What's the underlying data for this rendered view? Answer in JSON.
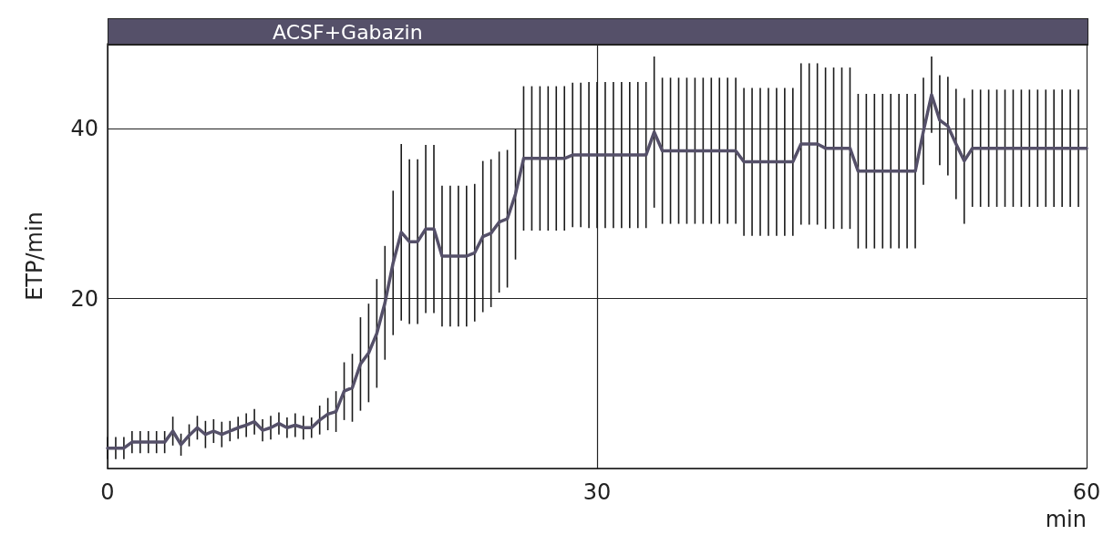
{
  "chart_data": {
    "type": "line",
    "ylabel": "ETP/min",
    "xlabel": "min",
    "xlim": [
      0,
      60
    ],
    "xticks": [
      0,
      30,
      60
    ],
    "ylim": [
      0,
      50
    ],
    "yticks": [
      20,
      40
    ],
    "grid": true,
    "marker": "none",
    "line_style": "solid",
    "annotations": [
      "ACSF+Gabazin"
    ],
    "series": [
      {
        "color": "#555069",
        "x": [
          0,
          0.5,
          1,
          1.5,
          2,
          2.5,
          3,
          3.5,
          4,
          4.5,
          5,
          5.5,
          6,
          6.5,
          7,
          7.5,
          8,
          8.5,
          9,
          9.5,
          10,
          10.5,
          11,
          11.5,
          12,
          12.5,
          13,
          13.5,
          14,
          14.5,
          15,
          15.5,
          16,
          16.5,
          17,
          17.5,
          18,
          18.5,
          19,
          19.5,
          20,
          20.5,
          21,
          21.5,
          22,
          22.5,
          23,
          23.5,
          24,
          24.5,
          25,
          25.5,
          26,
          26.5,
          27,
          27.5,
          28,
          28.5,
          29,
          29.5,
          30,
          30.5,
          31,
          31.5,
          32,
          32.5,
          33,
          33.5,
          34,
          34.5,
          35,
          35.5,
          36,
          36.5,
          37,
          37.5,
          38,
          38.5,
          39,
          39.5,
          40,
          40.5,
          41,
          41.5,
          42,
          42.5,
          43,
          43.5,
          44,
          44.5,
          45,
          45.5,
          46,
          46.5,
          47,
          47.5,
          48,
          48.5,
          49,
          49.5,
          50,
          50.5,
          51,
          51.5,
          52,
          52.5,
          53,
          53.5,
          54,
          54.5,
          55,
          55.5,
          56,
          56.5,
          57,
          57.5,
          58,
          58.5,
          59,
          59.5,
          60
        ],
        "values": [
          2.4,
          2.4,
          2.4,
          3.1,
          3.1,
          3.1,
          3.1,
          3.1,
          4.4,
          2.8,
          3.9,
          4.8,
          4.0,
          4.4,
          4.0,
          4.4,
          4.8,
          5.1,
          5.5,
          4.5,
          4.8,
          5.3,
          4.8,
          5.1,
          4.8,
          4.8,
          5.7,
          6.4,
          6.7,
          9.1,
          9.5,
          12.3,
          13.6,
          15.9,
          19.5,
          24.2,
          27.8,
          26.7,
          26.7,
          28.2,
          28.2,
          25.0,
          25.0,
          25.0,
          25.0,
          25.4,
          27.3,
          27.7,
          29.0,
          29.4,
          32.3,
          36.5,
          36.5,
          36.5,
          36.5,
          36.5,
          36.5,
          36.9,
          36.9,
          36.9,
          36.9,
          36.9,
          36.9,
          36.9,
          36.9,
          36.9,
          36.9,
          39.6,
          37.4,
          37.4,
          37.4,
          37.4,
          37.4,
          37.4,
          37.4,
          37.4,
          37.4,
          37.4,
          36.1,
          36.1,
          36.1,
          36.1,
          36.1,
          36.1,
          36.1,
          38.2,
          38.2,
          38.2,
          37.7,
          37.7,
          37.7,
          37.7,
          35.0,
          35.0,
          35.0,
          35.0,
          35.0,
          35.0,
          35.0,
          35.0,
          39.7,
          44.0,
          41.0,
          40.3,
          38.2,
          36.2,
          37.7,
          37.7,
          37.7,
          37.7,
          37.7,
          37.7,
          37.7,
          37.7,
          37.7,
          37.7,
          37.7,
          37.7,
          37.7,
          37.7,
          37.7
        ],
        "errors": [
          1.3,
          1.3,
          1.3,
          1.3,
          1.3,
          1.3,
          1.3,
          1.3,
          1.7,
          1.3,
          1.3,
          1.4,
          1.6,
          1.4,
          1.5,
          1.2,
          1.3,
          1.4,
          1.5,
          1.3,
          1.4,
          1.3,
          1.2,
          1.4,
          1.4,
          1.2,
          1.7,
          1.9,
          2.4,
          3.4,
          4.0,
          5.5,
          5.8,
          6.4,
          6.7,
          8.5,
          10.4,
          9.7,
          9.7,
          9.9,
          9.9,
          8.3,
          8.3,
          8.3,
          8.3,
          8.1,
          8.9,
          8.7,
          8.3,
          8.1,
          7.7,
          8.5,
          8.5,
          8.5,
          8.5,
          8.5,
          8.5,
          8.5,
          8.5,
          8.6,
          8.6,
          8.6,
          8.6,
          8.6,
          8.6,
          8.6,
          8.6,
          8.9,
          8.6,
          8.6,
          8.6,
          8.6,
          8.6,
          8.6,
          8.6,
          8.6,
          8.6,
          8.6,
          8.7,
          8.7,
          8.7,
          8.7,
          8.7,
          8.7,
          8.7,
          9.5,
          9.5,
          9.5,
          9.5,
          9.5,
          9.5,
          9.5,
          9.1,
          9.1,
          9.1,
          9.1,
          9.1,
          9.1,
          9.1,
          9.1,
          6.3,
          4.5,
          5.3,
          5.8,
          6.5,
          7.4,
          6.9,
          6.9,
          6.9,
          6.9,
          6.9,
          6.9,
          6.9,
          6.9,
          6.9,
          6.9,
          6.9,
          6.9,
          6.9,
          6.9,
          null
        ]
      }
    ]
  }
}
